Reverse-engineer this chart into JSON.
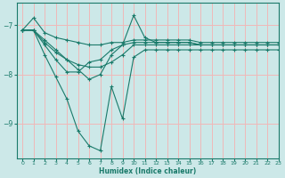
{
  "background_color": "#cce8e8",
  "grid_color": "#f0b8b8",
  "line_color": "#1a7a6a",
  "marker_color": "#1a7a6a",
  "xlabel": "Humidex (Indice chaleur)",
  "xlim": [
    -0.5,
    23
  ],
  "ylim": [
    -9.7,
    -6.55
  ],
  "yticks": [
    -9,
    -8,
    -7
  ],
  "xticks": [
    0,
    1,
    2,
    3,
    4,
    5,
    6,
    7,
    8,
    9,
    10,
    11,
    12,
    13,
    14,
    15,
    16,
    17,
    18,
    19,
    20,
    21,
    22,
    23
  ],
  "series": [
    {
      "x": [
        0,
        1,
        2,
        3,
        4,
        5,
        6,
        7,
        8,
        9,
        10,
        11,
        12,
        13,
        14,
        15,
        16,
        17,
        18,
        19,
        20,
        21,
        22,
        23
      ],
      "y": [
        -7.1,
        -6.85,
        -7.15,
        -7.25,
        -7.3,
        -7.35,
        -7.4,
        -7.4,
        -7.35,
        -7.35,
        -7.3,
        -7.3,
        -7.3,
        -7.3,
        -7.3,
        -7.3,
        -7.35,
        -7.35,
        -7.35,
        -7.35,
        -7.35,
        -7.35,
        -7.35,
        -7.35
      ]
    },
    {
      "x": [
        0,
        1,
        2,
        3,
        4,
        5,
        6,
        7,
        8,
        9,
        10,
        11,
        12,
        13,
        14,
        15,
        16,
        17,
        18,
        19,
        20,
        21,
        22,
        23
      ],
      "y": [
        -7.1,
        -7.1,
        -7.3,
        -7.5,
        -7.7,
        -7.9,
        -8.1,
        -8.0,
        -7.6,
        -7.4,
        -7.35,
        -7.35,
        -7.35,
        -7.35,
        -7.35,
        -7.35,
        -7.4,
        -7.4,
        -7.4,
        -7.4,
        -7.4,
        -7.4,
        -7.4,
        -7.4
      ]
    },
    {
      "x": [
        0,
        1,
        2,
        3,
        4,
        5,
        6,
        7,
        8,
        9,
        10,
        11,
        12,
        13,
        14,
        15,
        16,
        17,
        18,
        19,
        20,
        21,
        22,
        23
      ],
      "y": [
        -7.1,
        -7.1,
        -7.6,
        -8.05,
        -8.5,
        -9.15,
        -9.45,
        -9.55,
        -8.25,
        -8.9,
        -7.65,
        -7.5,
        -7.5,
        -7.5,
        -7.5,
        -7.5,
        -7.5,
        -7.5,
        -7.5,
        -7.5,
        -7.5,
        -7.5,
        -7.5,
        -7.5
      ]
    },
    {
      "x": [
        0,
        1,
        2,
        3,
        4,
        5,
        6,
        7,
        8,
        9,
        10,
        11,
        12,
        13,
        14,
        15,
        16,
        17,
        18,
        19,
        20,
        21,
        22,
        23
      ],
      "y": [
        -7.1,
        -7.1,
        -7.4,
        -7.7,
        -7.95,
        -7.95,
        -7.75,
        -7.7,
        -7.5,
        -7.4,
        -6.8,
        -7.25,
        -7.35,
        -7.35,
        -7.35,
        -7.35,
        -7.4,
        -7.4,
        -7.4,
        -7.4,
        -7.4,
        -7.4,
        -7.4,
        -7.4
      ]
    },
    {
      "x": [
        0,
        1,
        2,
        3,
        4,
        5,
        6,
        7,
        8,
        9,
        10,
        11,
        12,
        13,
        14,
        15,
        16,
        17,
        18,
        19,
        20,
        21,
        22,
        23
      ],
      "y": [
        -7.1,
        -7.1,
        -7.35,
        -7.55,
        -7.7,
        -7.8,
        -7.85,
        -7.85,
        -7.75,
        -7.6,
        -7.4,
        -7.4,
        -7.4,
        -7.4,
        -7.4,
        -7.4,
        -7.4,
        -7.4,
        -7.4,
        -7.4,
        -7.4,
        -7.4,
        -7.4,
        -7.4
      ]
    }
  ]
}
